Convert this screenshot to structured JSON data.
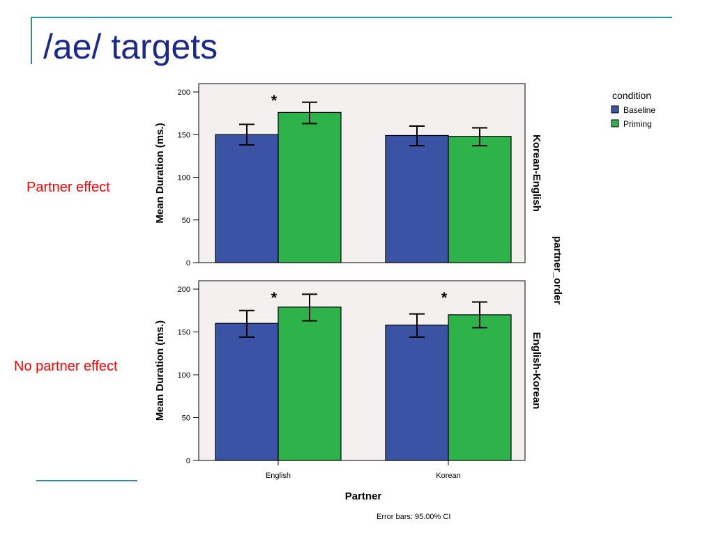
{
  "slide": {
    "title": "/ae/ targets",
    "left_labels": [
      "Partner effect",
      "No partner effect"
    ],
    "colors": {
      "title": "#1b2a8a",
      "rule": "#2e8b9a",
      "annotation": "#ff0000"
    }
  },
  "chart_data": {
    "type": "bar",
    "xlabel": "Partner",
    "ylabel": "Mean Duration (ms.)",
    "categories": [
      "English",
      "Korean"
    ],
    "ylim": [
      0,
      200
    ],
    "yticks": [
      0,
      50,
      100,
      150,
      200
    ],
    "legend": {
      "title": "condition",
      "position": "top-right"
    },
    "facet_label": "partner_order",
    "note": "Error bars: 95.00% CI",
    "colors": {
      "Baseline": "#3a53a4",
      "Priming": "#2db34a",
      "plot_bg": "#f4f0f0"
    },
    "panels": [
      {
        "name": "Korean-English",
        "series": [
          {
            "name": "Baseline",
            "values": [
              150,
              149
            ],
            "ci_low": [
              138,
              137
            ],
            "ci_high": [
              162,
              160
            ]
          },
          {
            "name": "Priming",
            "values": [
              176,
              148
            ],
            "ci_low": [
              163,
              137
            ],
            "ci_high": [
              188,
              158
            ]
          }
        ],
        "significance": [
          "*",
          ""
        ]
      },
      {
        "name": "English-Korean",
        "series": [
          {
            "name": "Baseline",
            "values": [
              160,
              158
            ],
            "ci_low": [
              144,
              144
            ],
            "ci_high": [
              175,
              171
            ]
          },
          {
            "name": "Priming",
            "values": [
              179,
              170
            ],
            "ci_low": [
              163,
              155
            ],
            "ci_high": [
              194,
              185
            ]
          }
        ],
        "significance": [
          "*",
          "*"
        ]
      }
    ]
  }
}
